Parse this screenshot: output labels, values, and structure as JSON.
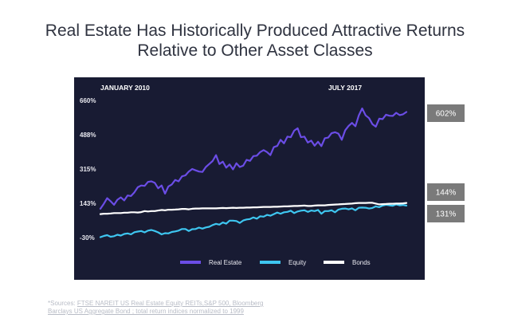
{
  "header": {
    "title_line1": "Real Estate Has Historically Produced Attractive Returns",
    "title_line2": "Relative to Other Asset Classes"
  },
  "colors": {
    "panel": "#181b33",
    "real_estate": "#6b4de6",
    "equity": "#3ec6f0",
    "bonds": "#ffffff",
    "badge": "#7a7a7a"
  },
  "chart_data": {
    "type": "line",
    "date_labels": [
      "JANUARY 2010",
      "JULY 2017"
    ],
    "y_ticks": [
      "660%",
      "488%",
      "315%",
      "143%",
      "-30%"
    ],
    "y_tick_values": [
      660,
      488,
      315,
      143,
      -30
    ],
    "ylim": [
      -30,
      660
    ],
    "x": [
      0,
      1,
      2,
      3,
      4,
      5,
      6,
      7,
      8,
      9,
      10,
      11,
      12,
      13,
      14,
      15,
      16,
      17,
      18,
      19,
      20,
      21,
      22,
      23,
      24,
      25,
      26,
      27,
      28,
      29,
      30,
      31,
      32,
      33,
      34,
      35,
      36,
      37,
      38,
      39,
      40,
      41,
      42,
      43,
      44,
      45,
      46,
      47,
      48,
      49,
      50,
      51,
      52,
      53,
      54,
      55,
      56,
      57,
      58,
      59,
      60,
      61,
      62,
      63,
      64,
      65,
      66,
      67,
      68,
      69,
      70,
      71,
      72,
      73,
      74,
      75,
      76,
      77,
      78,
      79,
      80,
      81,
      82,
      83,
      84,
      85,
      86,
      87,
      88,
      89,
      90
    ],
    "series": [
      {
        "name": "Real Estate",
        "end_label": "602%",
        "values": [
          115,
          140,
          168,
          153,
          135,
          160,
          172,
          157,
          182,
          179,
          198,
          223,
          232,
          230,
          250,
          253,
          245,
          218,
          232,
          191,
          227,
          237,
          260,
          253,
          278,
          283,
          302,
          315,
          308,
          302,
          300,
          325,
          340,
          355,
          385,
          340,
          352,
          322,
          338,
          313,
          344,
          325,
          332,
          361,
          356,
          380,
          382,
          400,
          410,
          400,
          385,
          425,
          431,
          462,
          444,
          478,
          475,
          508,
          520,
          475,
          478,
          448,
          458,
          432,
          452,
          430,
          470,
          473,
          495,
          500,
          493,
          462,
          510,
          532,
          547,
          530,
          585,
          620,
          585,
          571,
          541,
          528,
          568,
          566,
          588,
          583,
          582,
          598,
          586,
          590,
          602
        ]
      },
      {
        "name": "Equity",
        "end_label": "131%",
        "values": [
          -28,
          -22,
          -18,
          -26,
          -23,
          -16,
          -20,
          -12,
          -9,
          -14,
          -3,
          0,
          3,
          -4,
          5,
          8,
          3,
          -4,
          -14,
          -8,
          -9,
          -2,
          1,
          5,
          13,
          13,
          3,
          12,
          13,
          20,
          15,
          21,
          24,
          33,
          39,
          35,
          46,
          40,
          55,
          55,
          53,
          44,
          56,
          61,
          63,
          71,
          65,
          77,
          75,
          84,
          80,
          88,
          96,
          90,
          97,
          99,
          105,
          93,
          101,
          105,
          107,
          99,
          106,
          103,
          109,
          90,
          103,
          103,
          107,
          97,
          111,
          115,
          116,
          112,
          117,
          107,
          120,
          121,
          120,
          116,
          119,
          127,
          123,
          131,
          135,
          132,
          130,
          137,
          132,
          134,
          131
        ]
      },
      {
        "name": "Bonds",
        "end_label": "144%",
        "values": [
          88,
          90,
          90,
          91,
          93,
          93,
          93,
          95,
          95,
          97,
          97,
          96,
          98,
          103,
          101,
          103,
          103,
          106,
          109,
          107,
          110,
          110,
          111,
          112,
          114,
          114,
          112,
          115,
          116,
          116,
          117,
          117,
          117,
          117,
          117,
          118,
          119,
          118,
          119,
          120,
          119,
          120,
          120,
          121,
          121,
          122,
          122,
          123,
          124,
          124,
          124,
          125,
          125,
          126,
          127,
          127,
          128,
          129,
          129,
          130,
          131,
          129,
          129,
          131,
          132,
          132,
          132,
          134,
          135,
          136,
          137,
          138,
          139,
          140,
          141,
          143,
          144,
          144,
          144,
          145,
          145,
          141,
          137,
          138,
          139,
          140,
          140,
          141,
          141,
          142,
          144
        ]
      }
    ],
    "legend_placement": "bottom"
  },
  "sources": {
    "prefix": "*Sources: ",
    "link_text": "FTSE NAREIT US Real Estate Equity REITs,S&P 500, Bloomberg",
    "rest": "Barclays US Aggregate Bond ; total return indices normalized to 1999"
  }
}
